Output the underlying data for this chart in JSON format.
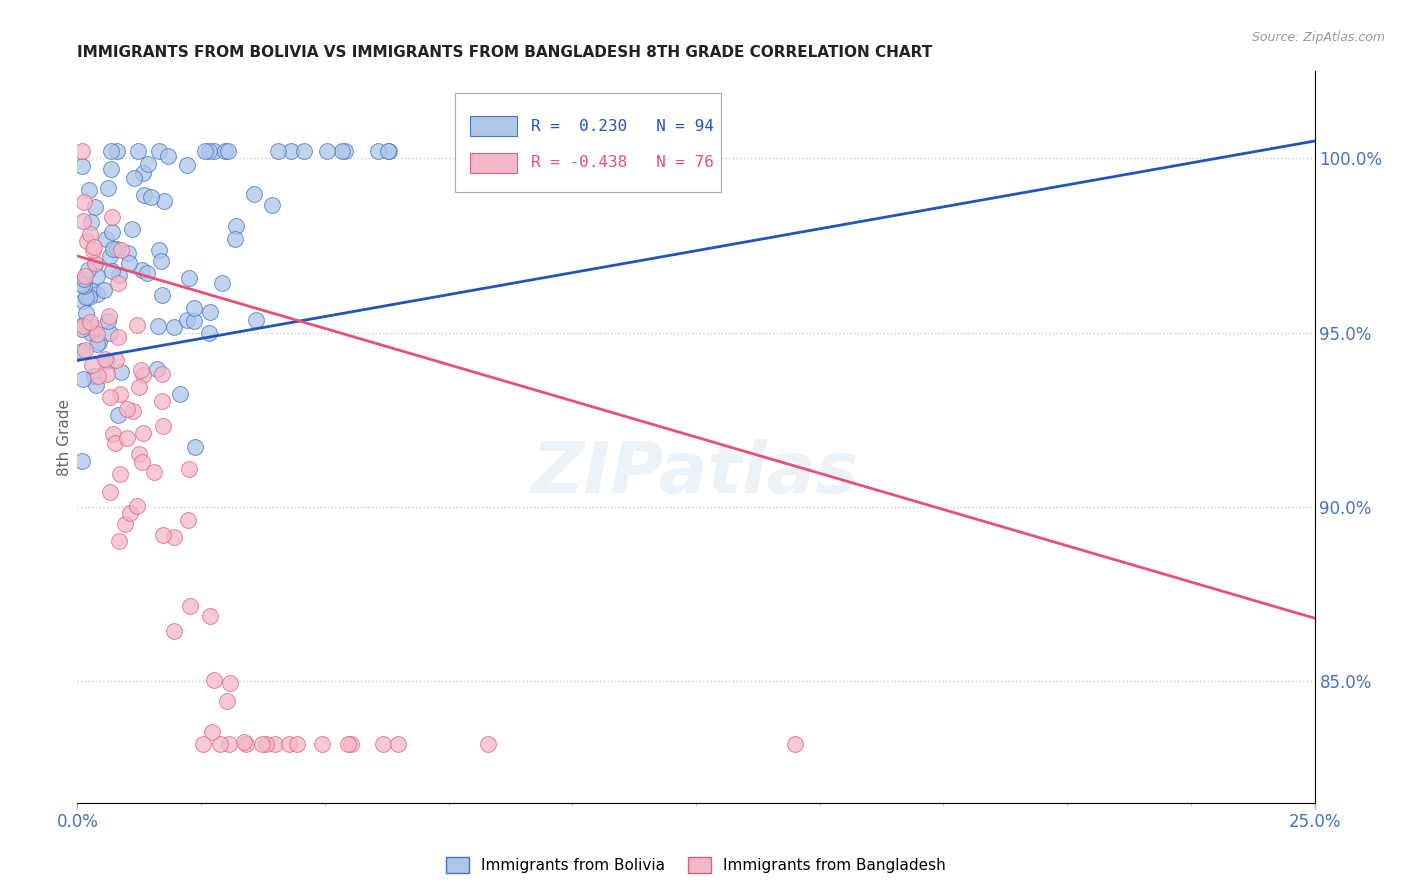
{
  "title": "IMMIGRANTS FROM BOLIVIA VS IMMIGRANTS FROM BANGLADESH 8TH GRADE CORRELATION CHART",
  "source": "Source: ZipAtlas.com",
  "ylabel": "8th Grade",
  "ylabel_right_labels": [
    "100.0%",
    "95.0%",
    "90.0%",
    "85.0%"
  ],
  "ylabel_right_values": [
    1.0,
    0.95,
    0.9,
    0.85
  ],
  "xlim": [
    0.0,
    0.25
  ],
  "ylim": [
    0.815,
    1.025
  ],
  "bolivia_R": 0.23,
  "bolivia_N": 94,
  "bangladesh_R": -0.438,
  "bangladesh_N": 76,
  "bolivia_color": "#aec6e8",
  "bangladesh_color": "#f4b8c8",
  "bolivia_edge_color": "#4472c4",
  "bangladesh_edge_color": "#e06080",
  "bolivia_line_color": "#2255bb",
  "bangladesh_line_color": "#e8507a",
  "watermark_text": "ZIPatlas",
  "bolivia_line_x0": 0.0,
  "bolivia_line_y0": 0.942,
  "bolivia_line_x1": 0.25,
  "bolivia_line_y1": 1.005,
  "bangladesh_line_x0": 0.0,
  "bangladesh_line_y0": 0.972,
  "bangladesh_line_x1": 0.25,
  "bangladesh_line_y1": 0.868
}
